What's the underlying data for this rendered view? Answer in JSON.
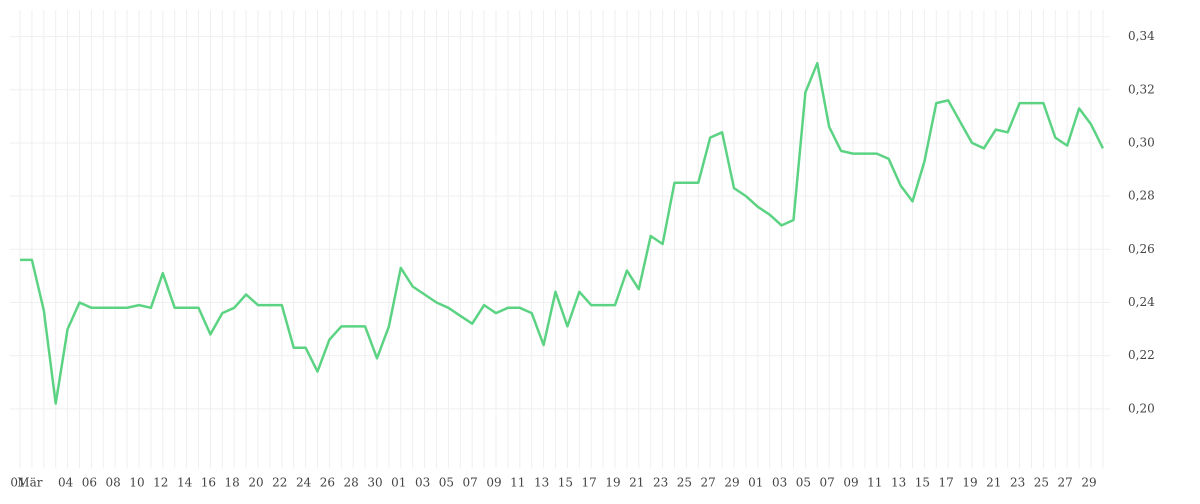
{
  "chart_data": {
    "type": "line",
    "categories": [
      "01",
      "Mär",
      null,
      null,
      "04",
      null,
      "06",
      null,
      "08",
      null,
      "10",
      null,
      "12",
      null,
      "14",
      null,
      "16",
      null,
      "18",
      null,
      "20",
      null,
      "22",
      null,
      "24",
      null,
      "26",
      null,
      "28",
      null,
      "30",
      null,
      "01",
      null,
      "03",
      null,
      "05",
      null,
      "07",
      null,
      "09",
      null,
      "11",
      null,
      "13",
      null,
      "15",
      null,
      "17",
      null,
      "19",
      null,
      "21",
      null,
      "23",
      null,
      "25",
      null,
      "27",
      null,
      "29",
      null,
      "01",
      null,
      "03",
      null,
      "05",
      null,
      "07",
      null,
      "09",
      null,
      "11",
      null,
      "13",
      null,
      "15",
      null,
      "17",
      null,
      "19",
      null,
      "21",
      null,
      "23",
      null,
      "25",
      null,
      "27",
      null,
      "29",
      null
    ],
    "values": [
      0.256,
      0.256,
      0.237,
      0.202,
      0.23,
      0.24,
      0.238,
      0.238,
      0.238,
      0.238,
      0.239,
      0.238,
      0.251,
      0.238,
      0.238,
      0.238,
      0.228,
      0.236,
      0.238,
      0.243,
      0.239,
      0.239,
      0.239,
      0.223,
      0.223,
      0.214,
      0.226,
      0.231,
      0.231,
      0.231,
      0.219,
      0.231,
      0.253,
      0.246,
      0.243,
      0.24,
      0.238,
      0.235,
      0.232,
      0.239,
      0.236,
      0.238,
      0.238,
      0.236,
      0.224,
      0.244,
      0.231,
      0.244,
      0.239,
      0.239,
      0.239,
      0.252,
      0.245,
      0.265,
      0.262,
      0.285,
      0.285,
      0.285,
      0.302,
      0.304,
      0.283,
      0.28,
      0.276,
      0.273,
      0.269,
      0.271,
      0.319,
      0.33,
      0.306,
      0.297,
      0.296,
      0.296,
      0.296,
      0.294,
      0.284,
      0.278,
      0.293,
      0.315,
      0.316,
      0.308,
      0.3,
      0.298,
      0.305,
      0.304,
      0.315,
      0.315,
      0.315,
      0.302,
      0.299,
      0.313,
      0.307,
      0.298
    ],
    "color": "#5cd383",
    "ylim": [
      0.18,
      0.35
    ],
    "yticks": [
      {
        "value": 0.2,
        "label": "0,20"
      },
      {
        "value": 0.22,
        "label": "0,22"
      },
      {
        "value": 0.24,
        "label": "0,24"
      },
      {
        "value": 0.26,
        "label": "0,26"
      },
      {
        "value": 0.28,
        "label": "0,28"
      },
      {
        "value": 0.3,
        "label": "0,30"
      },
      {
        "value": 0.32,
        "label": "0,32"
      },
      {
        "value": 0.34,
        "label": "0,34"
      }
    ],
    "grid": true
  }
}
